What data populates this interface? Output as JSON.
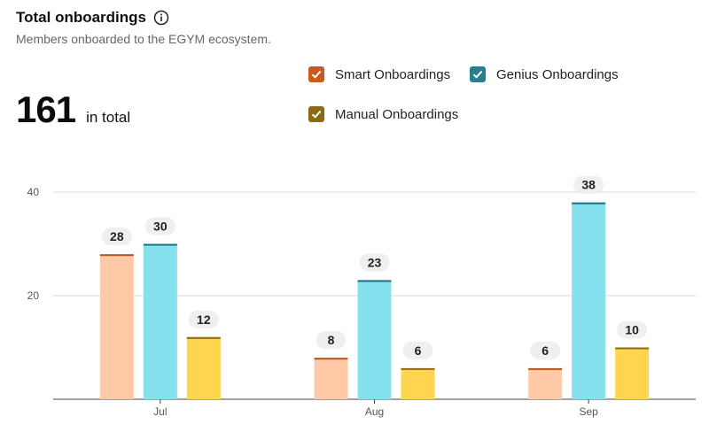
{
  "header": {
    "title": "Total onboardings",
    "subtitle": "Members onboarded to the EGYM ecosystem."
  },
  "total": {
    "value": "161",
    "label": "in total"
  },
  "legend": [
    {
      "label": "Smart Onboardings",
      "color": "#c85a1e",
      "checked": true
    },
    {
      "label": "Genius Onboardings",
      "color": "#25808f",
      "checked": true
    },
    {
      "label": "Manual Onboardings",
      "color": "#8a6a12",
      "checked": true
    }
  ],
  "chart_data": {
    "type": "bar",
    "categories": [
      "Jul",
      "Aug",
      "Sep"
    ],
    "series": [
      {
        "name": "Smart Onboardings",
        "values": [
          28,
          8,
          6
        ],
        "fill": "#ffc9a8",
        "cap": "#b7521c"
      },
      {
        "name": "Genius Onboardings",
        "values": [
          30,
          23,
          38
        ],
        "fill": "#86e1ef",
        "cap": "#1f6f82"
      },
      {
        "name": "Manual Onboardings",
        "values": [
          12,
          6,
          10
        ],
        "fill": "#ffd54f",
        "cap": "#8a6a12"
      }
    ],
    "yticks": [
      20,
      40
    ],
    "ylim": [
      0,
      40
    ],
    "grid": true,
    "xlabel": "",
    "ylabel": ""
  }
}
